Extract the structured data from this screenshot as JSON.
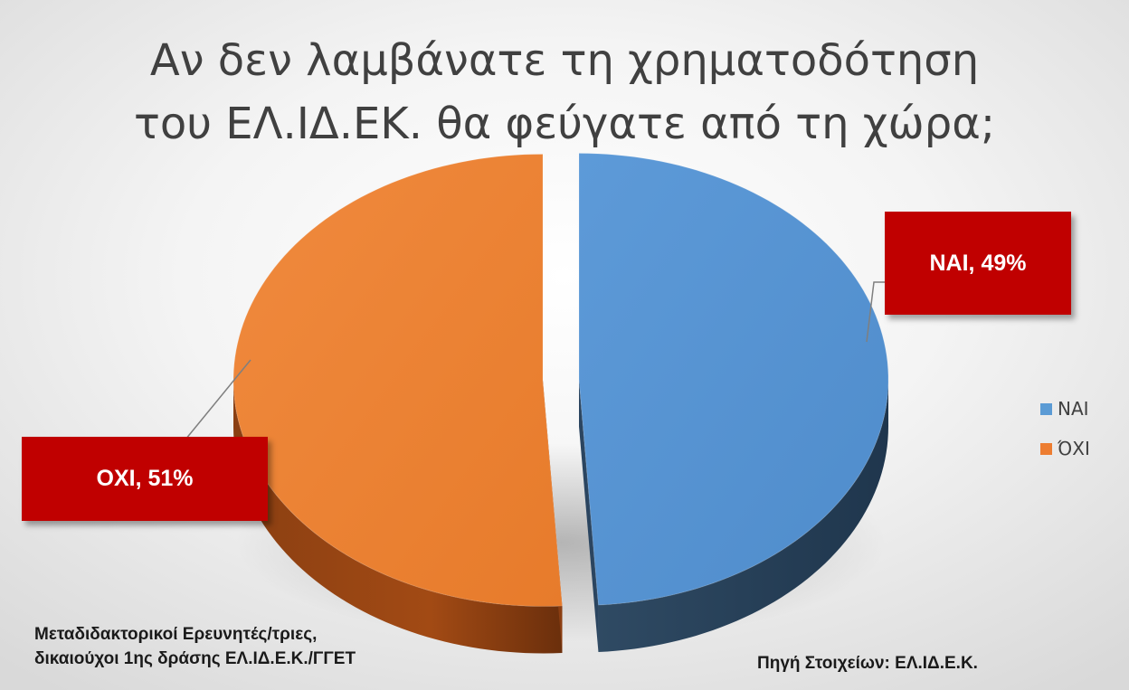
{
  "chart_data": {
    "type": "pie",
    "title": [
      "Αν δεν λαμβάνατε τη χρηματοδότηση",
      "του ΕΛ.ΙΔ.ΕΚ. θα φεύγατε από τη χώρα;"
    ],
    "categories": [
      "ΝΑΙ",
      "ΌΧΙ"
    ],
    "values": [
      49,
      51
    ],
    "colors": [
      "#5b9bd5",
      "#ed7d31"
    ],
    "data_labels": [
      "ΝΑΙ, 49%",
      "ΟΧΙ, 51%"
    ],
    "legend": {
      "placement": "right",
      "entries": [
        "ΝΑΙ",
        "ΌΧΙ"
      ]
    },
    "style": "3d-exploded"
  },
  "callout_color": "#c00000",
  "footnotes": {
    "left": [
      "Μεταδιδακτορικοί Ερευνητές/τριες,",
      "δικαιούχοι 1ης δράσης ΕΛ.ΙΔ.Ε.Κ./ΓΓΕΤ"
    ],
    "right": "Πηγή Στοιχείων: ΕΛ.ΙΔ.Ε.Κ."
  }
}
